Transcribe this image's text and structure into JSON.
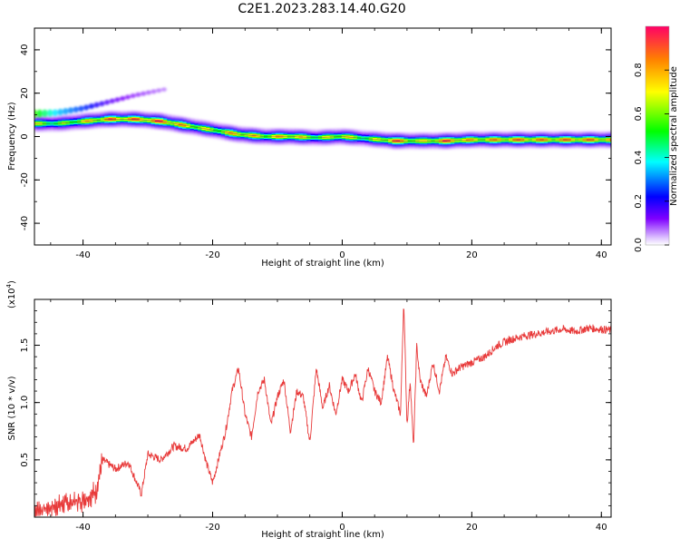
{
  "title": "C2E1.2023.283.14.40.G20",
  "chart_data": [
    {
      "type": "heatmap",
      "xlabel": "Height of straight line (km)",
      "ylabel": "Frequency (Hz)",
      "xlim": [
        -47.5,
        41.5
      ],
      "ylim": [
        -50,
        50
      ],
      "xticks": [
        "-40",
        "-20",
        "0",
        "20",
        "40"
      ],
      "yticks": [
        "40",
        "20",
        "0",
        "-20",
        "-40"
      ],
      "ridge": {
        "x": [
          -47.5,
          -44,
          -40,
          -36,
          -32,
          -28,
          -24,
          -20,
          -16,
          -12,
          -8,
          -4,
          0,
          4,
          8,
          12,
          16,
          20,
          24,
          28,
          32,
          36,
          41.5
        ],
        "y": [
          6,
          6,
          7,
          8,
          8,
          7,
          5,
          3,
          1,
          0,
          0,
          -0.5,
          0,
          -1,
          -2,
          -2,
          -2,
          -1.5,
          -1.5,
          -1.5,
          -1.5,
          -1.5,
          -1.5
        ],
        "amplitude": [
          0.7,
          0.6,
          0.75,
          0.9,
          0.9,
          0.95,
          0.8,
          0.7,
          0.85,
          0.75,
          0.85,
          0.65,
          0.8,
          0.6,
          0.95,
          0.7,
          0.95,
          0.8,
          0.85,
          0.9,
          0.85,
          0.9,
          0.85
        ]
      },
      "secondary": {
        "x": [
          -47.5,
          -44,
          -40,
          -36,
          -32,
          -27
        ],
        "y": [
          10.5,
          11,
          13,
          16,
          19,
          22
        ],
        "amplitude": [
          0.55,
          0.35,
          0.25,
          0.15,
          0.1,
          0.06
        ]
      }
    },
    {
      "type": "line",
      "xlabel": "Height of straight line (km)",
      "ylabel": "SNR (10 * v/v)",
      "yscale_label": "(x10",
      "yscale_exp": "4",
      "yscale_close": ")",
      "xlim": [
        -47.5,
        41.5
      ],
      "ylim": [
        0,
        1.9
      ],
      "xticks": [
        "-40",
        "-20",
        "0",
        "20",
        "40"
      ],
      "yticks": [
        "0.5",
        "1.0",
        "1.5"
      ],
      "series": [
        {
          "color": "#e83a3a",
          "x": [
            -47.5,
            -44,
            -40,
            -38,
            -37,
            -35,
            -33,
            -31,
            -30,
            -28,
            -26,
            -24,
            -22,
            -21,
            -20,
            -18,
            -17,
            -16,
            -15,
            -14,
            -13,
            -12,
            -11,
            -10,
            -9,
            -8,
            -7,
            -6,
            -5,
            -4,
            -3,
            -2,
            -1,
            0,
            1,
            2,
            3,
            4,
            5,
            6,
            7,
            8,
            9,
            9.5,
            10,
            10.5,
            11,
            11.5,
            12,
            13,
            14,
            15,
            16,
            17,
            18,
            20,
            22,
            24,
            26,
            28,
            30,
            32,
            34,
            36,
            38,
            40,
            41.5
          ],
          "y": [
            0.05,
            0.1,
            0.15,
            0.22,
            0.5,
            0.42,
            0.48,
            0.2,
            0.55,
            0.5,
            0.62,
            0.6,
            0.72,
            0.48,
            0.3,
            0.75,
            1.1,
            1.3,
            0.9,
            0.7,
            1.1,
            1.2,
            0.8,
            1.05,
            1.2,
            0.75,
            1.1,
            1.05,
            0.65,
            1.3,
            0.95,
            1.15,
            0.9,
            1.2,
            1.1,
            1.25,
            1.0,
            1.3,
            1.1,
            1.0,
            1.4,
            1.1,
            0.9,
            1.9,
            0.8,
            1.2,
            0.6,
            1.5,
            1.2,
            1.05,
            1.35,
            1.1,
            1.4,
            1.25,
            1.3,
            1.35,
            1.4,
            1.5,
            1.55,
            1.58,
            1.6,
            1.62,
            1.64,
            1.62,
            1.65,
            1.64,
            1.63
          ]
        }
      ]
    },
    {
      "type": "colorbar",
      "label": "Normalized spectral amplitude",
      "range": [
        0,
        1
      ],
      "ticks": [
        "0.0",
        "0.2",
        "0.4",
        "0.6",
        "0.8"
      ]
    }
  ],
  "colors": {
    "axis": "#000000",
    "line": "#e83a3a",
    "background": "#ffffff"
  }
}
